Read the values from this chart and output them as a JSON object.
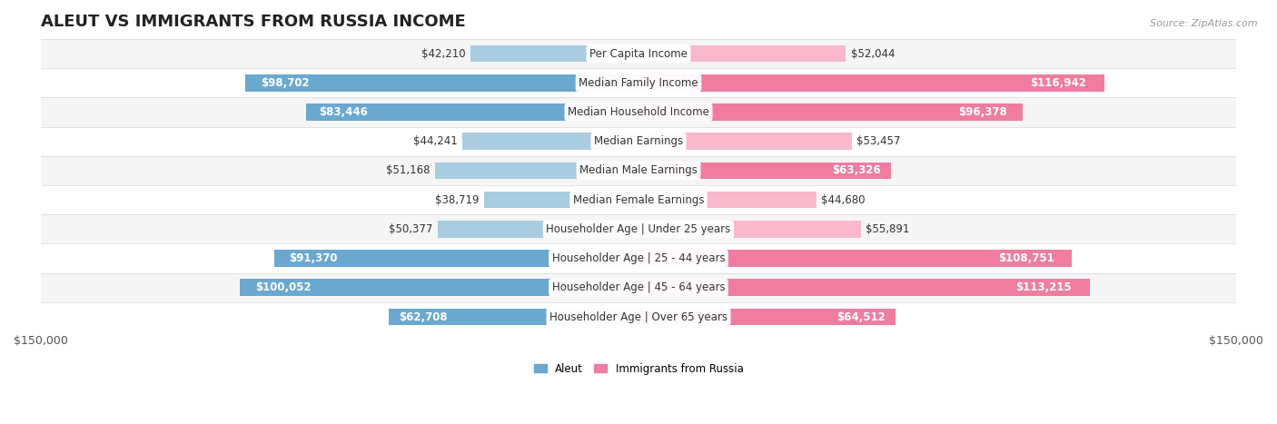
{
  "title": "ALEUT VS IMMIGRANTS FROM RUSSIA INCOME",
  "source": "Source: ZipAtlas.com",
  "categories": [
    "Per Capita Income",
    "Median Family Income",
    "Median Household Income",
    "Median Earnings",
    "Median Male Earnings",
    "Median Female Earnings",
    "Householder Age | Under 25 years",
    "Householder Age | 25 - 44 years",
    "Householder Age | 45 - 64 years",
    "Householder Age | Over 65 years"
  ],
  "aleut_values": [
    42210,
    98702,
    83446,
    44241,
    51168,
    38719,
    50377,
    91370,
    100052,
    62708
  ],
  "russia_values": [
    52044,
    116942,
    96378,
    53457,
    63326,
    44680,
    55891,
    108751,
    113215,
    64512
  ],
  "aleut_color_large": "#6aa8d0",
  "aleut_color_small": "#a8cce0",
  "russia_color_large": "#f07ca0",
  "russia_color_small": "#f9b8cc",
  "aleut_label": "Aleut",
  "russia_label": "Immigrants from Russia",
  "max_value": 150000,
  "bar_height": 0.58,
  "title_fontsize": 13,
  "axis_fontsize": 9,
  "cat_fontsize": 8.5,
  "value_fontsize": 8.5,
  "inside_threshold": 60000,
  "row_colors": [
    "#f5f5f5",
    "#ffffff"
  ],
  "row_border_color": "#d8d8d8"
}
